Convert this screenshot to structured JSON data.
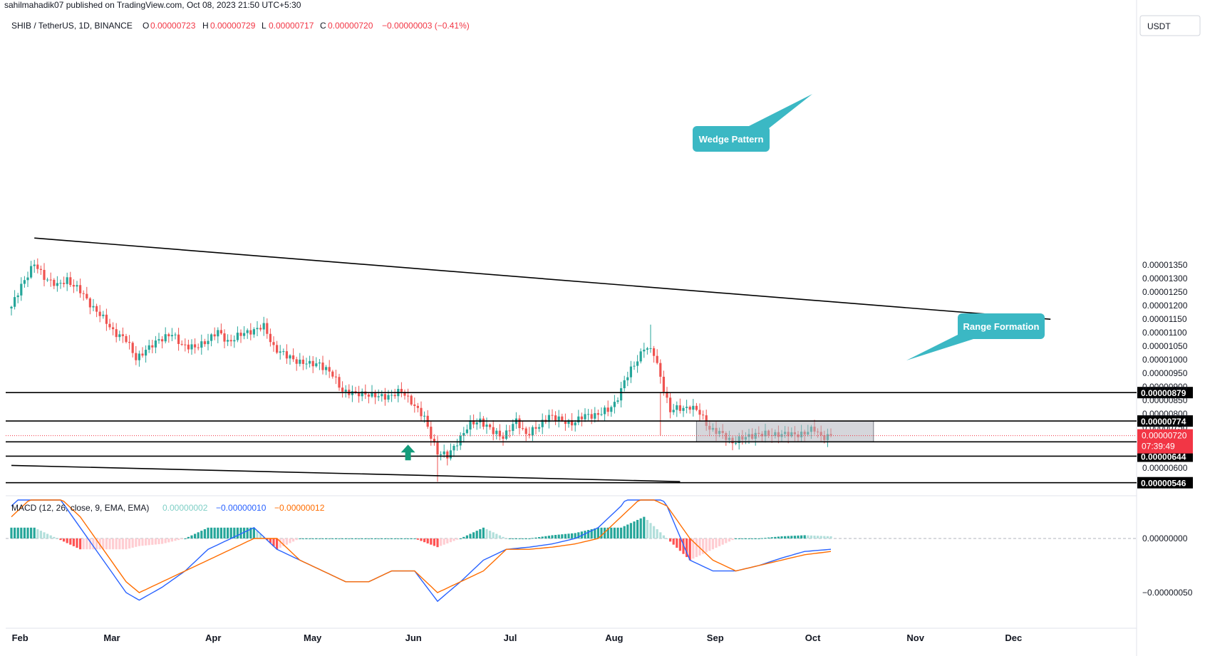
{
  "header": {
    "publisher": "sahilmahadik07 published on TradingView.com, Oct 08, 2023 21:50 UTC+5:30",
    "symbol": "SHIB / TetherUS, 1D, BINANCE",
    "o_label": "O",
    "o_value": "0.00000723",
    "h_label": "H",
    "h_value": "0.00000729",
    "l_label": "L",
    "l_value": "0.00000717",
    "c_label": "C",
    "c_value": "0.00000720",
    "change": "−0.00000003 (−0.41%)"
  },
  "currency_button": "USDT",
  "price_axis": {
    "ticks": [
      "0.00001350",
      "0.00001300",
      "0.00001250",
      "0.00001200",
      "0.00001150",
      "0.00001100",
      "0.00001050",
      "0.00001000",
      "0.00000950",
      "0.00000900",
      "0.00000850",
      "0.00000800",
      "0.00000750",
      "0.00000600"
    ],
    "levels": [
      "0.00000879",
      "0.00000774",
      "0.00000697",
      "0.00000644",
      "0.00000546"
    ],
    "current_price": "0.00000720",
    "countdown": "07:39:49"
  },
  "macd": {
    "label": "MACD (12, 26, close, 9, EMA, EMA)",
    "histogram_value": "0.00000002",
    "macd_value": "−0.00000010",
    "signal_value": "−0.00000012",
    "ticks": [
      "0.00000000",
      "−0.00000050"
    ]
  },
  "annotations": {
    "wedge": "Wedge Pattern",
    "range": "Range Formation"
  },
  "colors": {
    "up": "#26a69a",
    "down": "#ef5350",
    "macd_line": "#2962ff",
    "signal_line": "#ff6d00",
    "callout": "#3bb8c4",
    "range_box": "#b2b5be",
    "current_price_bg": "#f23645"
  },
  "chart_data": [
    {
      "type": "candlestick",
      "title": "SHIB / TetherUS, 1D, BINANCE",
      "x_tick_labels": [
        "Feb",
        "Mar",
        "Apr",
        "May",
        "Jun",
        "Jul",
        "Aug",
        "Sep",
        "Oct",
        "Nov",
        "Dec"
      ],
      "ylim": [
        5.4e-06,
        1.4e-05
      ],
      "y_scale": "linear",
      "x_range": [
        "2023-01-31",
        "2023-12-14"
      ],
      "close_series": {
        "dates": [
          "2023-01-31",
          "2023-02-03",
          "2023-02-07",
          "2023-02-10",
          "2023-02-14",
          "2023-02-17",
          "2023-02-21",
          "2023-02-24",
          "2023-02-28",
          "2023-03-03",
          "2023-03-07",
          "2023-03-10",
          "2023-03-14",
          "2023-03-17",
          "2023-03-21",
          "2023-03-24",
          "2023-03-28",
          "2023-03-31",
          "2023-04-04",
          "2023-04-07",
          "2023-04-11",
          "2023-04-14",
          "2023-04-18",
          "2023-04-21",
          "2023-04-25",
          "2023-04-28",
          "2023-05-02",
          "2023-05-05",
          "2023-05-09",
          "2023-05-12",
          "2023-05-16",
          "2023-05-19",
          "2023-05-23",
          "2023-05-26",
          "2023-05-30",
          "2023-06-02",
          "2023-06-06",
          "2023-06-10",
          "2023-06-13",
          "2023-06-16",
          "2023-06-20",
          "2023-06-23",
          "2023-06-27",
          "2023-06-30",
          "2023-07-04",
          "2023-07-07",
          "2023-07-11",
          "2023-07-14",
          "2023-07-18",
          "2023-07-21",
          "2023-07-25",
          "2023-07-28",
          "2023-08-01",
          "2023-08-03",
          "2023-08-06",
          "2023-08-09",
          "2023-08-12",
          "2023-08-15",
          "2023-08-17",
          "2023-08-20",
          "2023-08-23",
          "2023-08-26",
          "2023-08-29",
          "2023-09-01",
          "2023-09-05",
          "2023-09-08",
          "2023-09-12",
          "2023-09-15",
          "2023-09-19",
          "2023-09-22",
          "2023-09-26",
          "2023-09-29",
          "2023-10-03",
          "2023-10-05",
          "2023-10-08"
        ],
        "close": [
          1.19e-05,
          1.28e-05,
          1.35e-05,
          1.31e-05,
          1.27e-05,
          1.3e-05,
          1.25e-05,
          1.21e-05,
          1.15e-05,
          1.11e-05,
          1.07e-05,
          1.01e-05,
          1.04e-05,
          1.08e-05,
          1.09e-05,
          1.06e-05,
          1.04e-05,
          1.07e-05,
          1.1e-05,
          1.07e-05,
          1.09e-05,
          1.11e-05,
          1.12e-05,
          1.05e-05,
          1.01e-05,
          1e-05,
          9.8e-06,
          9.9e-06,
          9.4e-06,
          8.9e-06,
          8.7e-06,
          8.8e-06,
          8.6e-06,
          8.7e-06,
          8.8e-06,
          8.5e-06,
          7.8e-06,
          6.6e-06,
          6.4e-06,
          7e-06,
          7.6e-06,
          7.8e-06,
          7.3e-06,
          7.2e-06,
          7.7e-06,
          7.3e-06,
          7.5e-06,
          8e-06,
          7.7e-06,
          7.7e-06,
          7.9e-06,
          8e-06,
          8.1e-06,
          8.4e-06,
          9.2e-06,
          9.8e-06,
          1.05e-05,
          1.02e-05,
          9.4e-06,
          8.1e-06,
          8.2e-06,
          8.3e-06,
          8e-06,
          7.5e-06,
          7.2e-06,
          7e-06,
          7.1e-06,
          7.3e-06,
          7.2e-06,
          7.3e-06,
          7.2e-06,
          7.3e-06,
          7.4e-06,
          7.2e-06,
          7.2e-06
        ]
      },
      "notable": {
        "wick_low_2023-06-10": 5.5e-06,
        "wick_high_2023-08-14": 1.13e-05,
        "wick_low_2023-08-17": 7.2e-06
      },
      "horizontal_levels": [
        8.79e-06,
        7.74e-06,
        6.97e-06,
        6.44e-06,
        5.46e-06
      ],
      "current_price": 7.2e-06,
      "trendlines": [
        {
          "name": "wedge upper",
          "from": [
            "2023-02-07",
            1.45e-05
          ],
          "to": [
            "2023-12-14",
            1.15e-05
          ]
        },
        {
          "name": "wedge lower",
          "from": [
            "2023-01-31",
            6.1e-06
          ],
          "to": [
            "2023-08-23",
            5.5e-06
          ]
        }
      ],
      "range_box": {
        "from": "2023-08-28",
        "to": "2023-10-21",
        "low": 6.97e-06,
        "high": 7.74e-06
      },
      "buy_arrow": {
        "date": "2023-06-01",
        "price": 6.5e-06
      }
    },
    {
      "type": "line",
      "title": "MACD (12, 26, close, 9, EMA, EMA)",
      "ylim": [
        -7e-07,
        6e-07
      ],
      "dates": [
        "2023-01-31",
        "2023-02-07",
        "2023-02-14",
        "2023-02-21",
        "2023-02-28",
        "2023-03-07",
        "2023-03-11",
        "2023-03-18",
        "2023-03-25",
        "2023-04-01",
        "2023-04-08",
        "2023-04-15",
        "2023-04-22",
        "2023-04-29",
        "2023-05-06",
        "2023-05-13",
        "2023-05-20",
        "2023-05-27",
        "2023-06-03",
        "2023-06-10",
        "2023-06-17",
        "2023-06-24",
        "2023-07-01",
        "2023-07-08",
        "2023-07-15",
        "2023-07-22",
        "2023-07-29",
        "2023-08-05",
        "2023-08-12",
        "2023-08-19",
        "2023-08-26",
        "2023-09-02",
        "2023-09-09",
        "2023-09-16",
        "2023-09-23",
        "2023-09-30",
        "2023-10-08"
      ],
      "series": [
        {
          "name": "MACD",
          "values": [
            3e-07,
            5e-07,
            4e-07,
            1e-07,
            -2e-07,
            -5e-07,
            -5.7e-07,
            -4.5e-07,
            -3e-07,
            -1e-07,
            0.0,
            1e-07,
            -1e-07,
            -2e-07,
            -3e-07,
            -4e-07,
            -4e-07,
            -3e-07,
            -3e-07,
            -5.8e-07,
            -4e-07,
            -2e-07,
            -1e-07,
            -8e-08,
            -5e-08,
            0.0,
            1e-07,
            3e-07,
            6e-07,
            3e-07,
            -2e-07,
            -3e-07,
            -3e-07,
            -2.5e-07,
            -1.8e-07,
            -1.2e-07,
            -1e-07
          ]
        },
        {
          "name": "Signal",
          "values": [
            2e-07,
            4e-07,
            4e-07,
            2e-07,
            -1e-07,
            -4e-07,
            -5e-07,
            -4e-07,
            -3e-07,
            -2e-07,
            -1e-07,
            0.0,
            0.0,
            -2e-07,
            -3e-07,
            -4e-07,
            -4e-07,
            -3e-07,
            -3e-07,
            -5e-07,
            -4e-07,
            -3e-07,
            -1e-07,
            -1e-07,
            -8e-08,
            -5e-08,
            0.0,
            2e-07,
            4e-07,
            3e-07,
            0.0,
            -2e-07,
            -3e-07,
            -2.5e-07,
            -2e-07,
            -1.5e-07,
            -1.2e-07
          ]
        },
        {
          "name": "Histogram",
          "values": [
            1e-07,
            1e-07,
            0.0,
            -1e-07,
            -1e-07,
            -1e-07,
            -7e-08,
            -5e-08,
            0.0,
            1e-07,
            1e-07,
            1e-07,
            -1e-07,
            0.0,
            0.0,
            0.0,
            0.0,
            0.0,
            0.0,
            -8e-08,
            0.0,
            1e-07,
            0.0,
            0.0,
            3e-08,
            5e-08,
            1e-07,
            1e-07,
            2e-07,
            0.0,
            -2e-07,
            -1e-07,
            0.0,
            0.0,
            2e-08,
            3e-08,
            2e-08
          ]
        }
      ]
    }
  ]
}
